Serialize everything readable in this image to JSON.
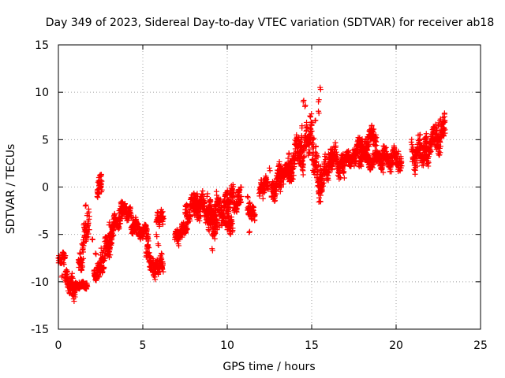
{
  "chart_data": {
    "type": "scatter",
    "title": "Day 349 of 2023, Sidereal Day-to-day VTEC variation (SDTVAR) for receiver ab18",
    "xlabel": "GPS time / hours",
    "ylabel": "SDTVAR / TECUs",
    "xlim": [
      0,
      25
    ],
    "ylim": [
      -15,
      15
    ],
    "xticks": [
      0,
      5,
      10,
      15,
      20,
      25
    ],
    "yticks": [
      -15,
      -10,
      -5,
      0,
      5,
      10,
      15
    ],
    "grid": true,
    "marker": "plus",
    "colors": {
      "series": "#ff0000",
      "axis": "#000000",
      "grid": "#a0a0a0"
    },
    "series": [
      {
        "name": "SDTVAR",
        "trace": [
          [
            0.0,
            -7.5
          ],
          [
            0.1,
            -8.0
          ],
          [
            0.2,
            -9.5
          ],
          [
            0.3,
            -8.0
          ],
          [
            0.4,
            -9.8
          ],
          [
            0.5,
            -9.0
          ],
          [
            0.6,
            -10.2
          ],
          [
            0.7,
            -10.8
          ],
          [
            0.8,
            -11.3
          ],
          [
            0.9,
            -11.8
          ],
          [
            1.0,
            -10.5
          ],
          [
            1.2,
            -10.3
          ],
          [
            1.4,
            -10.5
          ],
          [
            1.6,
            -10.4
          ],
          [
            1.3,
            -8.0
          ],
          [
            1.4,
            -6.0
          ],
          [
            1.5,
            -4.0
          ],
          [
            1.6,
            -2.0
          ],
          [
            1.7,
            -3.0
          ],
          [
            1.8,
            -4.5
          ],
          [
            2.0,
            -5.5
          ],
          [
            2.2,
            -7.0
          ],
          [
            2.2,
            -9.5
          ],
          [
            2.3,
            -9.2
          ],
          [
            2.4,
            -9.5
          ],
          [
            2.5,
            -8.5
          ],
          [
            2.6,
            -7.5
          ],
          [
            2.8,
            -6.5
          ],
          [
            3.0,
            -6.0
          ],
          [
            3.1,
            -5.0
          ],
          [
            2.3,
            -1.0
          ],
          [
            2.35,
            0.5
          ],
          [
            2.4,
            1.0
          ],
          [
            2.45,
            1.2
          ],
          [
            2.5,
            0.0
          ],
          [
            2.55,
            -0.5
          ],
          [
            3.0,
            -4.0
          ],
          [
            3.3,
            -3.0
          ],
          [
            3.6,
            -2.5
          ],
          [
            3.9,
            -2.0
          ],
          [
            4.0,
            -2.2
          ],
          [
            4.2,
            -3.0
          ],
          [
            4.4,
            -3.5
          ],
          [
            4.4,
            -4.5
          ],
          [
            4.6,
            -4.8
          ],
          [
            4.8,
            -4.5
          ],
          [
            5.0,
            -5.0
          ],
          [
            5.2,
            -5.5
          ],
          [
            5.3,
            -7.0
          ],
          [
            5.4,
            -7.5
          ],
          [
            5.5,
            -8.5
          ],
          [
            5.6,
            -9.0
          ],
          [
            5.7,
            -9.5
          ],
          [
            5.8,
            -8.0
          ],
          [
            6.0,
            -8.5
          ],
          [
            6.1,
            -7.0
          ],
          [
            5.9,
            -6.0
          ],
          [
            5.8,
            -5.0
          ],
          [
            5.9,
            -3.5
          ],
          [
            6.0,
            -3.0
          ],
          [
            6.1,
            -3.2
          ],
          [
            7.0,
            -5.5
          ],
          [
            7.1,
            -6.0
          ],
          [
            7.3,
            -5.0
          ],
          [
            7.4,
            -4.0
          ],
          [
            7.6,
            -3.0
          ],
          [
            7.8,
            -2.0
          ],
          [
            8.0,
            -1.5
          ],
          [
            8.2,
            -2.5
          ],
          [
            8.4,
            -3.0
          ],
          [
            8.6,
            -2.0
          ],
          [
            8.8,
            -1.0
          ],
          [
            9.0,
            -2.5
          ],
          [
            9.2,
            -3.0
          ],
          [
            9.4,
            -1.5
          ],
          [
            8.9,
            -4.5
          ],
          [
            9.1,
            -5.0
          ],
          [
            9.1,
            -6.5
          ],
          [
            9.3,
            -4.5
          ],
          [
            9.5,
            -4.0
          ],
          [
            9.7,
            -3.5
          ],
          [
            9.9,
            -4.0
          ],
          [
            10.0,
            -4.5
          ],
          [
            9.8,
            -1.5
          ],
          [
            10.0,
            -0.5
          ],
          [
            10.2,
            -1.5
          ],
          [
            10.4,
            -2.5
          ],
          [
            10.6,
            -2.0
          ],
          [
            10.8,
            0.0
          ],
          [
            11.2,
            -1.0
          ],
          [
            11.4,
            -2.5
          ],
          [
            11.6,
            -3.0
          ],
          [
            11.3,
            -4.8
          ],
          [
            12.0,
            -0.5
          ],
          [
            12.2,
            0.5
          ],
          [
            12.3,
            1.0
          ],
          [
            12.5,
            2.0
          ],
          [
            12.7,
            -1.0
          ],
          [
            12.8,
            -1.5
          ],
          [
            13.0,
            1.0
          ],
          [
            13.2,
            2.0
          ],
          [
            13.5,
            1.5
          ],
          [
            13.7,
            1.0
          ],
          [
            13.9,
            3.0
          ],
          [
            14.0,
            4.5
          ],
          [
            14.1,
            5.5
          ],
          [
            14.2,
            5.0
          ],
          [
            14.3,
            2.5
          ],
          [
            14.5,
            4.0
          ],
          [
            14.7,
            6.0
          ],
          [
            14.9,
            7.5
          ],
          [
            15.0,
            6.5
          ],
          [
            15.1,
            5.0
          ],
          [
            15.2,
            3.0
          ],
          [
            15.3,
            1.0
          ],
          [
            15.4,
            -0.5
          ],
          [
            15.5,
            -1.5
          ],
          [
            15.6,
            0.0
          ],
          [
            15.8,
            1.5
          ],
          [
            16.0,
            2.5
          ],
          [
            15.4,
            9.0
          ],
          [
            15.5,
            10.5
          ],
          [
            15.4,
            8.0
          ],
          [
            14.6,
            8.5
          ],
          [
            14.5,
            9.0
          ],
          [
            15.2,
            7.0
          ],
          [
            16.0,
            3.5
          ],
          [
            16.2,
            4.0
          ],
          [
            16.4,
            3.0
          ],
          [
            16.6,
            1.5
          ],
          [
            16.8,
            2.0
          ],
          [
            17.0,
            3.0
          ],
          [
            17.3,
            3.0
          ],
          [
            17.6,
            3.5
          ],
          [
            17.9,
            4.0
          ],
          [
            18.2,
            5.0
          ],
          [
            18.5,
            5.8
          ],
          [
            18.8,
            5.5
          ],
          [
            18.8,
            3.0
          ],
          [
            19.0,
            3.5
          ],
          [
            19.2,
            2.5
          ],
          [
            19.5,
            3.0
          ],
          [
            19.8,
            2.5
          ],
          [
            20.0,
            3.0
          ],
          [
            20.1,
            3.5
          ],
          [
            20.3,
            2.5
          ],
          [
            21.0,
            3.0
          ],
          [
            21.2,
            4.0
          ],
          [
            21.4,
            5.5
          ],
          [
            21.6,
            4.0
          ],
          [
            21.8,
            3.0
          ],
          [
            22.0,
            4.0
          ],
          [
            22.2,
            5.0
          ],
          [
            22.4,
            6.0
          ],
          [
            22.5,
            6.5
          ],
          [
            22.6,
            7.0
          ],
          [
            22.7,
            6.0
          ],
          [
            22.8,
            5.5
          ]
        ],
        "bands": [
          [
            0.0,
            0.4,
            -8.0,
            -7.0,
            0.0,
            0.9
          ],
          [
            0.4,
            1.0,
            -9.8,
            -10.6,
            0.5,
            1.1
          ],
          [
            1.0,
            1.7,
            -10.4,
            -10.4,
            0.2,
            0.4
          ],
          [
            1.2,
            1.8,
            -9.0,
            -3.0,
            0.6,
            1.8
          ],
          [
            2.1,
            2.6,
            -9.5,
            -8.0,
            0.3,
            0.9
          ],
          [
            2.5,
            3.2,
            -8.0,
            -5.0,
            0.8,
            1.6
          ],
          [
            2.3,
            2.55,
            -0.5,
            0.8,
            0.3,
            0.5
          ],
          [
            3.0,
            3.8,
            -5.5,
            -2.5,
            0.6,
            1.2
          ],
          [
            3.7,
            4.3,
            -2.3,
            -3.0,
            0.4,
            0.9
          ],
          [
            4.3,
            5.3,
            -4.0,
            -5.0,
            0.4,
            1.0
          ],
          [
            5.2,
            5.7,
            -6.5,
            -9.0,
            0.5,
            1.1
          ],
          [
            5.7,
            6.2,
            -8.5,
            -8.0,
            0.4,
            0.8
          ],
          [
            5.8,
            6.2,
            -3.5,
            -3.0,
            0.4,
            0.9
          ],
          [
            6.9,
            7.6,
            -5.5,
            -4.0,
            0.4,
            0.8
          ],
          [
            7.5,
            8.2,
            -3.0,
            -1.5,
            0.6,
            1.4
          ],
          [
            8.0,
            9.0,
            -2.0,
            -2.5,
            0.7,
            1.6
          ],
          [
            8.8,
            9.4,
            -3.0,
            -4.5,
            0.6,
            1.5
          ],
          [
            9.0,
            10.0,
            -2.5,
            -2.0,
            0.8,
            1.8
          ],
          [
            9.9,
            10.3,
            -3.0,
            -4.5,
            0.5,
            1.2
          ],
          [
            10.0,
            10.8,
            -1.0,
            -1.5,
            0.6,
            1.5
          ],
          [
            11.2,
            11.6,
            -2.2,
            -2.8,
            0.4,
            0.8
          ],
          [
            11.9,
            12.4,
            -0.5,
            0.5,
            0.5,
            1.0
          ],
          [
            12.6,
            13.2,
            -0.5,
            1.0,
            0.6,
            1.2
          ],
          [
            13.0,
            13.8,
            1.5,
            1.5,
            0.5,
            1.0
          ],
          [
            13.6,
            14.4,
            1.5,
            5.0,
            0.8,
            1.6
          ],
          [
            14.3,
            15.0,
            3.0,
            6.0,
            1.0,
            2.2
          ],
          [
            15.0,
            15.6,
            4.0,
            -0.5,
            1.0,
            2.2
          ],
          [
            15.5,
            16.2,
            1.0,
            3.0,
            0.8,
            1.6
          ],
          [
            16.1,
            16.9,
            3.5,
            1.8,
            0.7,
            1.5
          ],
          [
            16.9,
            17.6,
            3.0,
            3.0,
            0.4,
            0.9
          ],
          [
            17.5,
            18.8,
            3.5,
            5.5,
            0.6,
            1.3
          ],
          [
            17.8,
            19.2,
            3.0,
            2.8,
            0.5,
            1.1
          ],
          [
            19.2,
            20.3,
            3.0,
            2.8,
            0.6,
            1.3
          ],
          [
            20.9,
            21.8,
            3.2,
            4.0,
            0.8,
            1.8
          ],
          [
            21.7,
            22.9,
            4.0,
            6.0,
            0.8,
            1.8
          ]
        ]
      }
    ]
  }
}
